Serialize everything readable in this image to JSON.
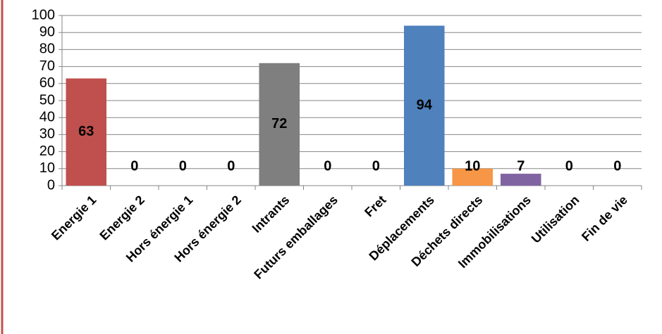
{
  "chart_data": {
    "type": "bar",
    "categories": [
      "Energie 1",
      "Energie 2",
      "Hors énergie 1",
      "Hors énergie 2",
      "Intrants",
      "Futurs emballages",
      "Fret",
      "Déplacements",
      "Déchets directs",
      "Immobilisations",
      "Utilisation",
      "Fin de vie"
    ],
    "values": [
      63,
      0,
      0,
      0,
      72,
      0,
      0,
      94,
      10,
      7,
      0,
      0
    ],
    "colors": [
      "#c0504d",
      null,
      null,
      null,
      "#7f7f7f",
      null,
      null,
      "#4f81bd",
      "#f79646",
      "#8064a2",
      null,
      null
    ],
    "ylim": [
      0,
      100
    ],
    "yticks": [
      0,
      10,
      20,
      30,
      40,
      50,
      60,
      70,
      80,
      90,
      100
    ],
    "grid": true
  }
}
